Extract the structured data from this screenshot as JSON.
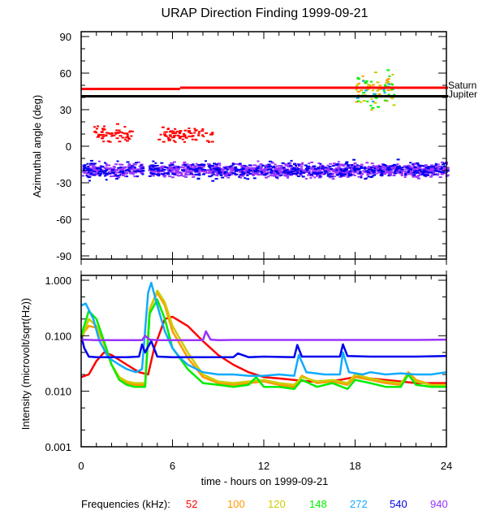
{
  "chart_data": [
    {
      "type": "scatter",
      "title": "URAP Direction Finding  1999-09-21",
      "xlabel": "",
      "ylabel": "Azimuthal angle (deg)",
      "xlim": [
        0,
        24
      ],
      "ylim": [
        -90,
        90
      ],
      "yticks": [
        "90",
        "60",
        "30",
        "0",
        "-30",
        "-60",
        "-90"
      ],
      "ytick_values": [
        90,
        60,
        30,
        0,
        -30,
        -60,
        -90
      ],
      "reference_lines": [
        {
          "name": "Saturn",
          "color": "#ff0000",
          "segments": [
            [
              0,
              6.5,
              47
            ],
            [
              6.5,
              24,
              48
            ]
          ]
        },
        {
          "name": "Jupiter",
          "color": "#000000",
          "segments": [
            [
              0,
              24,
              41
            ]
          ]
        }
      ],
      "scatter_groups": [
        {
          "freq": "52",
          "x_range": [
            0.8,
            3.3
          ],
          "y_center": 11,
          "y_spread": 6,
          "count": 60
        },
        {
          "freq": "52",
          "x_range": [
            5.0,
            8.6
          ],
          "y_center": 10,
          "y_spread": 6,
          "count": 80
        },
        {
          "freq": "540",
          "x_range": [
            0,
            24
          ],
          "y_center": -19,
          "y_spread": 6,
          "count": 500,
          "gap": [
            4.0,
            4.4
          ]
        },
        {
          "freq": "940",
          "x_range": [
            0,
            24
          ],
          "y_center": -19,
          "y_spread": 5,
          "count": 1400,
          "gap": [
            4.0,
            4.4
          ]
        },
        {
          "freq": "100",
          "x_range": [
            18.0,
            20.5
          ],
          "y_center": 48,
          "y_spread": 10,
          "count": 20
        },
        {
          "freq": "120",
          "x_range": [
            18.0,
            20.5
          ],
          "y_center": 45,
          "y_spread": 12,
          "count": 35
        },
        {
          "freq": "148",
          "x_range": [
            18.0,
            20.5
          ],
          "y_center": 46,
          "y_spread": 14,
          "count": 30
        },
        {
          "freq": "272",
          "x_range": [
            18.0,
            20.5
          ],
          "y_center": 45,
          "y_spread": 10,
          "count": 8
        }
      ]
    },
    {
      "type": "line",
      "xlabel": "time - hours on 1999-09-21",
      "ylabel": "Intensity (microvolt/sqrt(Hz))",
      "xlim": [
        0,
        24
      ],
      "ylim": [
        0.001,
        1.0
      ],
      "yscale": "log",
      "xticks": [
        "0",
        "6",
        "12",
        "18",
        "24"
      ],
      "xtick_values": [
        0,
        6,
        12,
        18,
        24
      ],
      "yticks": [
        "1.000",
        "0.100",
        "0.010",
        "0.001"
      ],
      "ytick_values": [
        1.0,
        0.1,
        0.01,
        0.001
      ],
      "series": [
        {
          "name": "52",
          "color": "#ff0000",
          "x": [
            0,
            0.5,
            1.0,
            1.5,
            2.0,
            3.0,
            3.8,
            4.4,
            4.8,
            5.5,
            6.0,
            7.0,
            8.0,
            9.0,
            10.0,
            11.0,
            12.0,
            13.0,
            14.0,
            15.0,
            16.0,
            17.0,
            18.0,
            19.0,
            20.0,
            21.0,
            22.0,
            23.0,
            24.0
          ],
          "y": [
            0.018,
            0.02,
            0.035,
            0.05,
            0.045,
            0.03,
            0.022,
            0.02,
            0.06,
            0.2,
            0.22,
            0.15,
            0.08,
            0.045,
            0.03,
            0.022,
            0.018,
            0.017,
            0.016,
            0.015,
            0.015,
            0.016,
            0.018,
            0.017,
            0.016,
            0.015,
            0.014,
            0.014,
            0.014
          ]
        },
        {
          "name": "100",
          "color": "#ff9900",
          "x": [
            0,
            0.5,
            1.0,
            1.5,
            2.0,
            2.5,
            3.0,
            3.5,
            4.2,
            4.5,
            5.0,
            5.5,
            6.0,
            7.0,
            8.0,
            9.0,
            10.0,
            11.0,
            12.0,
            13.0,
            14.0,
            14.5,
            15.5,
            16.5,
            17.5,
            18.0,
            19.0,
            20.0,
            21.0,
            21.5,
            22.0,
            23.0,
            24.0
          ],
          "y": [
            0.1,
            0.15,
            0.14,
            0.07,
            0.03,
            0.018,
            0.014,
            0.013,
            0.013,
            0.3,
            0.6,
            0.35,
            0.12,
            0.04,
            0.018,
            0.014,
            0.013,
            0.014,
            0.015,
            0.013,
            0.012,
            0.019,
            0.014,
            0.015,
            0.013,
            0.018,
            0.016,
            0.014,
            0.013,
            0.022,
            0.016,
            0.013,
            0.013
          ]
        },
        {
          "name": "120",
          "color": "#cccc00",
          "x": [
            0,
            0.5,
            1.0,
            1.5,
            2.0,
            2.5,
            3.0,
            3.5,
            4.2,
            4.5,
            5.0,
            5.5,
            6.0,
            7.0,
            8.0,
            9.0,
            10.0,
            11.0,
            12.0,
            13.0,
            14.0,
            14.5,
            15.5,
            16.5,
            17.5,
            18.0,
            19.0,
            20.0,
            21.0,
            21.5,
            22.0,
            23.0,
            24.0
          ],
          "y": [
            0.08,
            0.2,
            0.15,
            0.07,
            0.03,
            0.018,
            0.015,
            0.014,
            0.014,
            0.3,
            0.65,
            0.4,
            0.15,
            0.05,
            0.02,
            0.015,
            0.014,
            0.015,
            0.016,
            0.014,
            0.013,
            0.018,
            0.015,
            0.016,
            0.014,
            0.02,
            0.017,
            0.015,
            0.014,
            0.02,
            0.015,
            0.013,
            0.013
          ]
        },
        {
          "name": "148",
          "color": "#00ee00",
          "x": [
            0,
            0.5,
            1.0,
            1.5,
            2.0,
            2.5,
            3.0,
            3.5,
            4.2,
            4.5,
            5.0,
            5.5,
            6.0,
            7.0,
            8.0,
            9.0,
            10.0,
            11.0,
            11.5,
            12.0,
            13.0,
            14.0,
            14.5,
            15.5,
            16.5,
            17.5,
            18.0,
            19.0,
            20.0,
            21.0,
            21.5,
            22.0,
            23.0,
            24.0
          ],
          "y": [
            0.1,
            0.28,
            0.2,
            0.08,
            0.03,
            0.016,
            0.013,
            0.012,
            0.012,
            0.25,
            0.45,
            0.2,
            0.06,
            0.025,
            0.014,
            0.013,
            0.012,
            0.013,
            0.018,
            0.012,
            0.012,
            0.011,
            0.016,
            0.012,
            0.014,
            0.011,
            0.016,
            0.014,
            0.012,
            0.012,
            0.02,
            0.013,
            0.012,
            0.012
          ]
        },
        {
          "name": "272",
          "color": "#11aaff",
          "x": [
            0,
            0.3,
            0.8,
            1.2,
            1.8,
            2.5,
            3.0,
            3.6,
            4.0,
            4.4,
            4.6,
            5.0,
            5.5,
            6.0,
            6.5,
            7.0,
            8.0,
            9.0,
            10.0,
            11.0,
            12.0,
            13.0,
            14.0,
            14.3,
            14.8,
            16.0,
            17.0,
            17.2,
            17.6,
            18.5,
            19.0,
            20.0,
            21.0,
            22.0,
            23.0,
            24.0
          ],
          "y": [
            0.35,
            0.38,
            0.2,
            0.08,
            0.04,
            0.03,
            0.025,
            0.022,
            0.025,
            0.6,
            0.9,
            0.35,
            0.12,
            0.06,
            0.04,
            0.03,
            0.022,
            0.02,
            0.02,
            0.019,
            0.019,
            0.02,
            0.019,
            0.045,
            0.022,
            0.02,
            0.02,
            0.05,
            0.022,
            0.02,
            0.022,
            0.02,
            0.021,
            0.02,
            0.02,
            0.022
          ]
        },
        {
          "name": "540",
          "color": "#0000ee",
          "x": [
            0,
            0.2,
            0.5,
            1.0,
            2.0,
            3.0,
            3.8,
            4.0,
            4.2,
            4.6,
            5.0,
            6.0,
            8.0,
            10.0,
            10.3,
            11.0,
            12.0,
            14.0,
            14.2,
            14.5,
            16.0,
            17.0,
            17.2,
            17.5,
            19.0,
            20.0,
            22.0,
            24.0
          ],
          "y": [
            0.1,
            0.06,
            0.042,
            0.041,
            0.041,
            0.041,
            0.042,
            0.07,
            0.05,
            0.08,
            0.042,
            0.041,
            0.041,
            0.041,
            0.048,
            0.041,
            0.042,
            0.041,
            0.068,
            0.042,
            0.042,
            0.042,
            0.07,
            0.043,
            0.042,
            0.042,
            0.042,
            0.043
          ]
        },
        {
          "name": "940",
          "color": "#9933ff",
          "x": [
            0,
            1,
            2,
            3,
            4,
            4.2,
            4.5,
            5,
            6,
            7,
            8,
            8.2,
            8.5,
            9,
            10,
            12,
            14,
            16,
            18,
            20,
            22,
            24
          ],
          "y": [
            0.085,
            0.083,
            0.083,
            0.083,
            0.083,
            0.1,
            0.085,
            0.083,
            0.083,
            0.083,
            0.083,
            0.12,
            0.085,
            0.083,
            0.084,
            0.084,
            0.084,
            0.084,
            0.084,
            0.084,
            0.084,
            0.085
          ]
        }
      ]
    }
  ],
  "legend": {
    "label": "Frequencies (kHz):",
    "items": [
      {
        "label": "52",
        "color": "#ff0000"
      },
      {
        "label": "100",
        "color": "#ff9900"
      },
      {
        "label": "120",
        "color": "#cccc00"
      },
      {
        "label": "148",
        "color": "#00ee00"
      },
      {
        "label": "272",
        "color": "#11aaff"
      },
      {
        "label": "540",
        "color": "#0000ee"
      },
      {
        "label": "940",
        "color": "#9933ff"
      }
    ]
  }
}
